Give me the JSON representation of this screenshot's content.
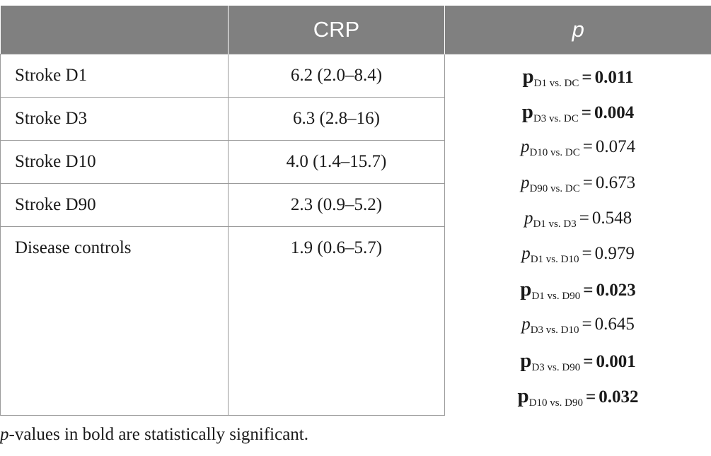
{
  "table": {
    "headers": [
      "",
      "CRP",
      "p"
    ],
    "rows": [
      {
        "label": "Stroke D1",
        "crp": "6.2 (2.0–8.4)"
      },
      {
        "label": "Stroke D3",
        "crp": "6.3 (2.8–16)"
      },
      {
        "label": "Stroke D10",
        "crp": "4.0 (1.4–15.7)"
      },
      {
        "label": "Stroke D90",
        "crp": "2.3 (0.9–5.2)"
      },
      {
        "label": "Disease controls",
        "crp": "1.9 (0.6–5.7)"
      }
    ],
    "p_values": [
      {
        "symbol": "p",
        "comparison": "D1 vs. DC",
        "value": "0.011",
        "significant": true
      },
      {
        "symbol": "p",
        "comparison": "D3 vs. DC",
        "value": "0.004",
        "significant": true
      },
      {
        "symbol": "p",
        "comparison": "D10 vs. DC",
        "value": "0.074",
        "significant": false
      },
      {
        "symbol": "p",
        "comparison": "D90 vs. DC",
        "value": "0.673",
        "significant": false
      },
      {
        "symbol": "p",
        "comparison": "D1 vs. D3",
        "value": "0.548",
        "significant": false
      },
      {
        "symbol": "p",
        "comparison": "D1 vs. D10",
        "value": "0.979",
        "significant": false
      },
      {
        "symbol": "p",
        "comparison": "D1 vs. D90",
        "value": "0.023",
        "significant": true
      },
      {
        "symbol": "p",
        "comparison": "D3 vs. D10",
        "value": "0.645",
        "significant": false
      },
      {
        "symbol": "p",
        "comparison": "D3 vs. D90",
        "value": "0.001",
        "significant": true
      },
      {
        "symbol": "p",
        "comparison": "D10 vs. D90",
        "value": "0.032",
        "significant": true
      }
    ],
    "equals_sign": "="
  },
  "footnote": {
    "italic_part": "p",
    "text": "-values in bold are statistically significant."
  }
}
